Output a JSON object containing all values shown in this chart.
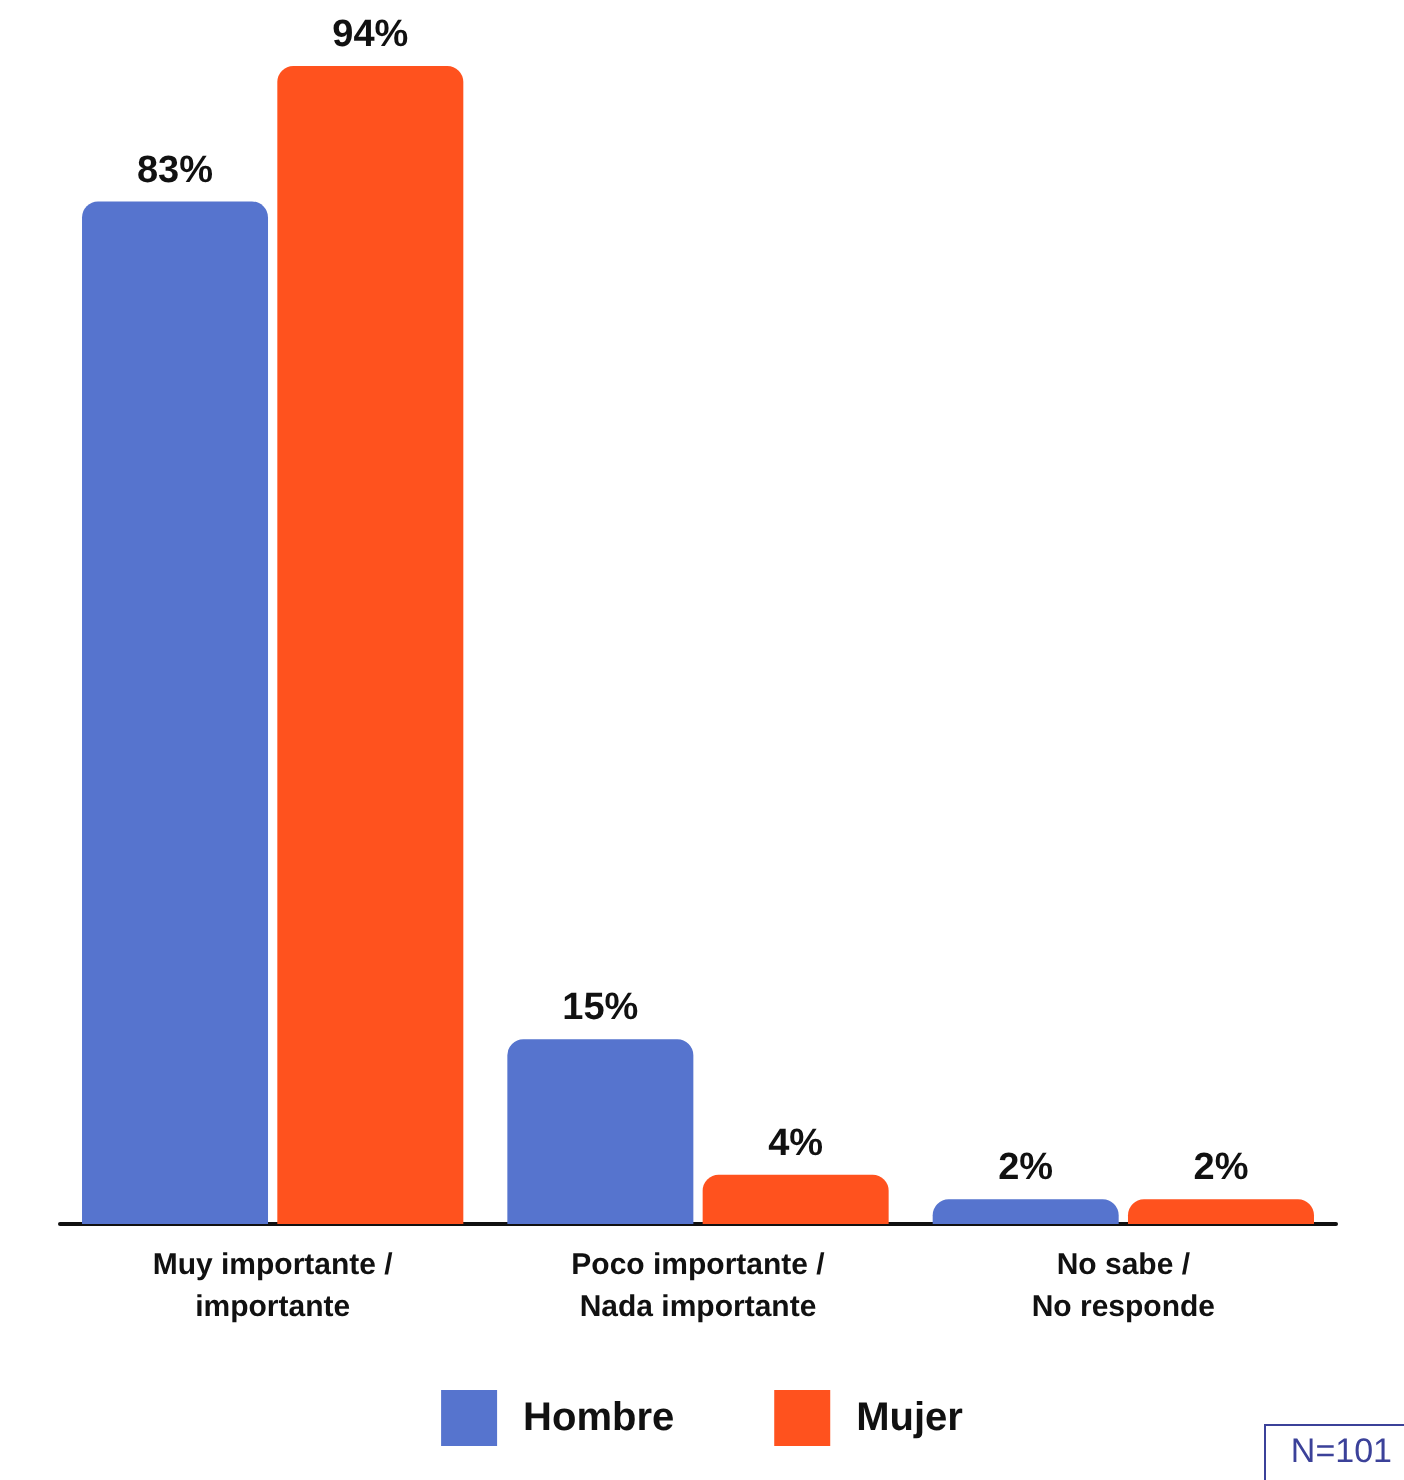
{
  "chart_data": {
    "type": "bar",
    "categories": [
      "Muy importante / importante",
      "Poco importante / Nada importante",
      "No sabe / No responde"
    ],
    "series": [
      {
        "name": "Hombre",
        "color": "#5674ce",
        "values": [
          83,
          15,
          2
        ],
        "value_labels": [
          "83%",
          "15%",
          "2%"
        ]
      },
      {
        "name": "Mujer",
        "color": "#ff521e",
        "values": [
          94,
          4,
          2
        ],
        "value_labels": [
          "94%",
          "4%",
          "2%"
        ]
      }
    ],
    "grid": false,
    "legend": "bottom",
    "annotations": [
      "N=101"
    ]
  }
}
